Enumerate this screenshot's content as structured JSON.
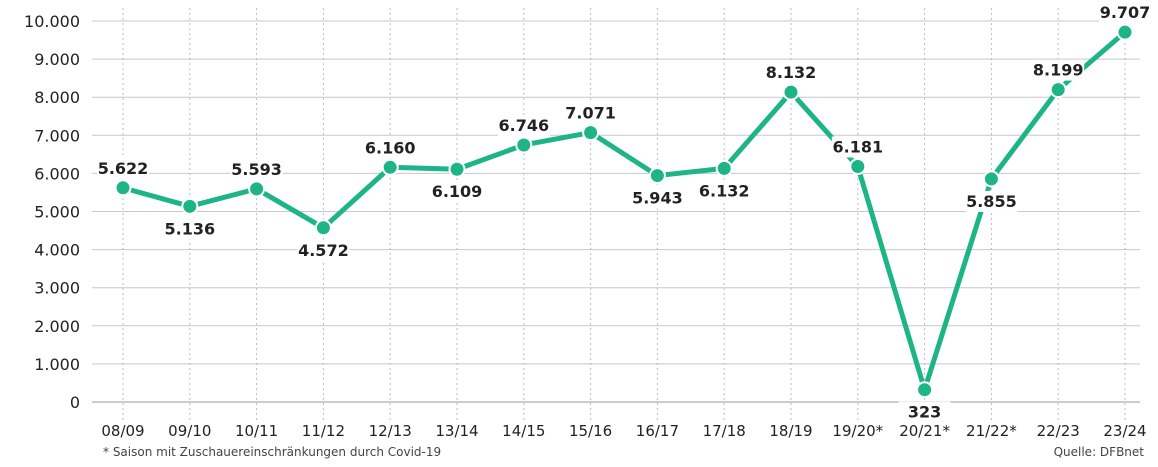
{
  "chart_data": {
    "type": "line",
    "categories": [
      "08/09",
      "09/10",
      "10/11",
      "11/12",
      "12/13",
      "13/14",
      "14/15",
      "15/16",
      "16/17",
      "17/18",
      "18/19",
      "19/20*",
      "20/21*",
      "21/22*",
      "22/23",
      "23/24"
    ],
    "series": [
      {
        "values": [
          5622,
          5136,
          5593,
          4572,
          6160,
          6109,
          6746,
          7071,
          5943,
          6132,
          8132,
          6181,
          323,
          5855,
          8199,
          9707
        ]
      }
    ],
    "data_labels": [
      "5.622",
      "5.136",
      "5.593",
      "4.572",
      "6.160",
      "6.109",
      "6.746",
      "7.071",
      "5.943",
      "6.132",
      "8.132",
      "6.181",
      "323",
      "5.855",
      "8.199",
      "9.707"
    ],
    "label_side": [
      "above",
      "below",
      "above",
      "below",
      "above",
      "below",
      "above",
      "above",
      "below",
      "below",
      "above",
      "above",
      "below",
      "below",
      "above",
      "above"
    ],
    "y_ticks": [
      0,
      1000,
      2000,
      3000,
      4000,
      5000,
      6000,
      7000,
      8000,
      9000,
      10000
    ],
    "y_tick_labels": [
      "0",
      "1.000",
      "2.000",
      "3.000",
      "4.000",
      "5.000",
      "6.000",
      "7.000",
      "8.000",
      "9.000",
      "10.000"
    ],
    "ylim": [
      0,
      10000
    ],
    "grid": "horizontal solid, vertical dotted",
    "line_color": "#1db585",
    "footnote": "* Saison mit Zuschauereinschränkungen durch Covid-19",
    "source": "Quelle: DFBnet"
  }
}
